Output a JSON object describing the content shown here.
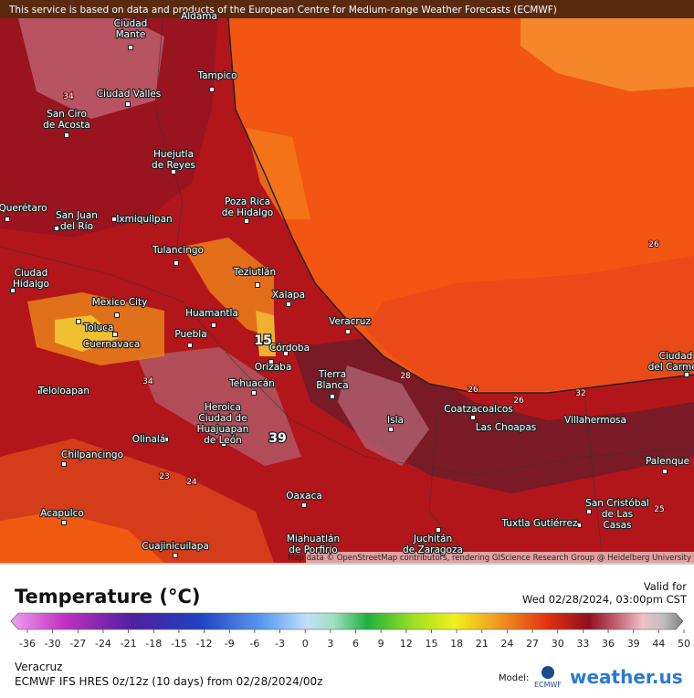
{
  "banner": "This service is based on data and products of the European Centre for Medium-range Weather Forecasts (ECMWF)",
  "attribution": "Map data © OpenStreetMap contributors, rendering GIScience Research Group @ Heidelberg University",
  "cities": [
    [
      "Aldama"
    ],
    [
      "Ciudad",
      "Mante"
    ],
    [
      "Tampico"
    ],
    [
      "Ciudad Valles"
    ],
    [
      "San Ciro",
      "de Acosta"
    ],
    [
      "Huejutla",
      "de Reyes"
    ],
    [
      "Poza Rica",
      "de Hidalgo"
    ],
    [
      "Querétaro"
    ],
    [
      "San Juan",
      "del Río"
    ],
    [
      "Ixmiquilpan"
    ],
    [
      "Tulancingo"
    ],
    [
      "Teziutlán"
    ],
    [
      "Xalapa"
    ],
    [
      "Ciudad",
      "Hidalgo"
    ],
    [
      "Mexico City"
    ],
    [
      "Toluca"
    ],
    [
      "Cuernavaca"
    ],
    [
      "Huamantla"
    ],
    [
      "Puebla"
    ],
    [
      "Veracruz"
    ],
    [
      "Córdoba"
    ],
    [
      "Orizaba"
    ],
    [
      "Tierra",
      "Blanca"
    ],
    [
      "Tehuacán"
    ],
    [
      "Teloloapan"
    ],
    [
      "Heroica",
      "Ciudad de",
      "Huajuapan",
      "de León"
    ],
    [
      "Olinalá"
    ],
    [
      "Chilpancingo"
    ],
    [
      "Isla"
    ],
    [
      "Coatzacoalcos"
    ],
    [
      "Las Choapas"
    ],
    [
      "Villahermosa"
    ],
    [
      "Palenque"
    ],
    [
      "Ciudad",
      "del Carmen"
    ],
    [
      "Oaxaca"
    ],
    [
      "Acapulco"
    ],
    [
      "Cuajinicuilapa"
    ],
    [
      "Miahuatlán",
      "de Porfirio"
    ],
    [
      "Juchitán",
      "de Zaragoza"
    ],
    [
      "Tuxtla Gutiérrez"
    ],
    [
      "San Cristóbal",
      "de Las",
      "Casas"
    ]
  ],
  "contour_labels": [
    "34",
    "15",
    "39",
    "34",
    "26",
    "26",
    "28",
    "32",
    "26",
    "24",
    "23",
    "25"
  ],
  "panel": {
    "title": "Temperature (°C)",
    "valid_label": "Valid for",
    "valid_time": "Wed 02/28/2024, 03:00pm CST",
    "ticks": [
      -36,
      -30,
      -27,
      -24,
      -21,
      -18,
      -15,
      -12,
      -9,
      -6,
      -3,
      0,
      3,
      6,
      9,
      12,
      15,
      18,
      21,
      24,
      27,
      30,
      33,
      36,
      39,
      44,
      50
    ],
    "location": "Veracruz",
    "model_run": "ECMWF IFS HRES 0z/12z (10 days) from  02/28/2024/00z",
    "model_label": "Model:",
    "model_logo": "ECMWF",
    "brand": "weather.us"
  }
}
